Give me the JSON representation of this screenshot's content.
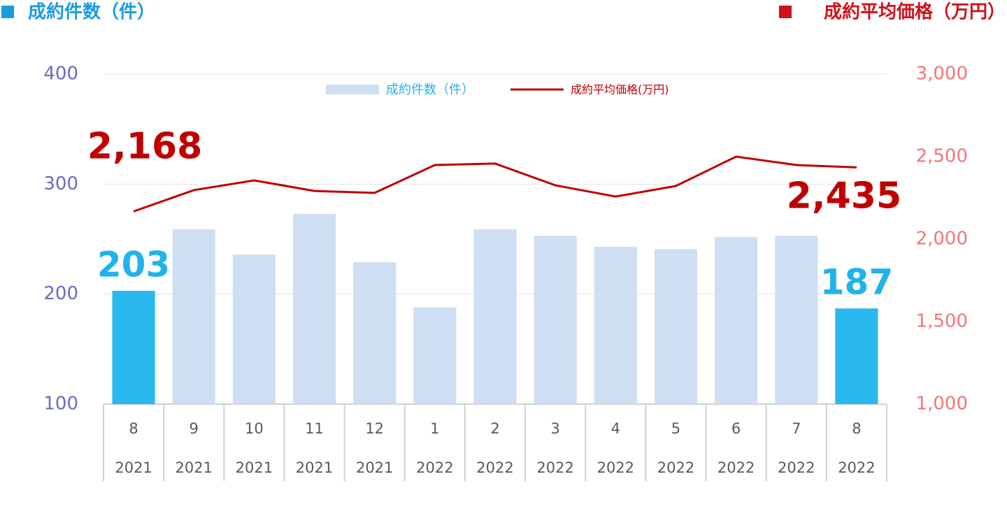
{
  "chart_data": {
    "type": "bar-line",
    "y_label": "成約件数（件）",
    "y2_label": "成約平均価格（万円）",
    "y_label_color": "#1a9be0",
    "y2_label_color": "#d0111b",
    "categories": [
      "8",
      "9",
      "10",
      "11",
      "12",
      "1",
      "2",
      "3",
      "4",
      "5",
      "6",
      "7",
      "8"
    ],
    "category_years": [
      "2021",
      "2021",
      "2021",
      "2021",
      "2021",
      "2022",
      "2022",
      "2022",
      "2022",
      "2022",
      "2022",
      "2022",
      "2022"
    ],
    "series": [
      {
        "name": "成約件数（件）",
        "type": "bar",
        "color": "#cfdff3",
        "colors": [
          "#29b9ee",
          "#cfdff3",
          "#cfdff3",
          "#cfdff3",
          "#cfdff3",
          "#cfdff3",
          "#cfdff3",
          "#cfdff3",
          "#cfdff3",
          "#cfdff3",
          "#cfdff3",
          "#cfdff3",
          "#29b9ee"
        ],
        "label_color": "#1fb3ec",
        "values": [
          203,
          259,
          236,
          273,
          229,
          188,
          259,
          253,
          243,
          241,
          252,
          253,
          187
        ],
        "value_labels": [
          "203",
          null,
          null,
          null,
          null,
          null,
          null,
          null,
          null,
          null,
          null,
          null,
          "187"
        ]
      },
      {
        "name": "成約平均価格(万円)",
        "type": "line",
        "axis": "y2",
        "color": "#c00000",
        "values": [
          2168,
          2297,
          2356,
          2292,
          2280,
          2449,
          2458,
          2326,
          2258,
          2322,
          2500,
          2449,
          2435
        ],
        "value_labels": [
          "2,168",
          null,
          null,
          null,
          null,
          null,
          null,
          null,
          null,
          null,
          null,
          null,
          "2,435"
        ]
      }
    ],
    "ylim": [
      100,
      400
    ],
    "yticks": [
      100,
      200,
      300,
      400
    ],
    "y2lim": [
      1000,
      3000
    ],
    "y2ticks": [
      {
        "value": 1000,
        "label": "1,000"
      },
      {
        "value": 1500,
        "label": "1,500"
      },
      {
        "value": 2000,
        "label": "2,000"
      },
      {
        "value": 2500,
        "label": "2,500"
      },
      {
        "value": 3000,
        "label": "3,000"
      }
    ],
    "ytick_color": "#6a6ac4",
    "y2tick_color": "#f27676",
    "grid": true
  }
}
